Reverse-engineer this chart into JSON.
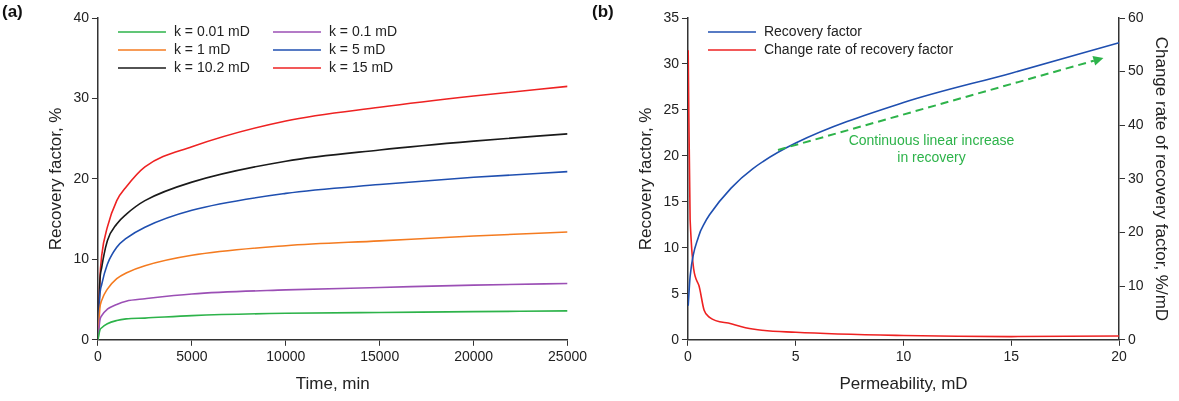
{
  "chart_data": [
    {
      "type": "line",
      "title": "(a)",
      "xlabel": "Time, min",
      "ylabel": "Recovery factor, %",
      "x": [
        0,
        100,
        200,
        500,
        1000,
        1500,
        2500,
        5000,
        10000,
        15000,
        20000,
        25000
      ],
      "series": [
        {
          "name": "k = 0.01 mD",
          "color": "#2db34a",
          "values": [
            0,
            1.2,
            1.5,
            2.0,
            2.4,
            2.6,
            2.7,
            3.0,
            3.3,
            3.4,
            3.5,
            3.6
          ]
        },
        {
          "name": "k = 0.1 mD",
          "color": "#9b4fb5",
          "values": [
            0,
            2.4,
            3.0,
            3.8,
            4.4,
            4.8,
            5.1,
            5.7,
            6.2,
            6.5,
            6.8,
            7.0
          ]
        },
        {
          "name": "k = 1 mD",
          "color": "#f47b20",
          "values": [
            0,
            3.9,
            4.9,
            6.3,
            7.6,
            8.3,
            9.2,
            10.5,
            11.7,
            12.3,
            12.9,
            13.4
          ]
        },
        {
          "name": "k = 5 mD",
          "color": "#1f4fb0",
          "values": [
            0,
            5.5,
            6.9,
            9.4,
            11.5,
            12.6,
            14.0,
            16.1,
            18.2,
            19.3,
            20.2,
            20.9
          ]
        },
        {
          "name": "k = 10.2 mD",
          "color": "#1a1a1a",
          "values": [
            0,
            7.2,
            9.0,
            12.3,
            14.4,
            15.6,
            17.3,
            19.6,
            22.2,
            23.6,
            24.7,
            25.6
          ]
        },
        {
          "name": "k = 15 mD",
          "color": "#ee2222",
          "values": [
            0,
            7.5,
            10.5,
            14.0,
            17.3,
            19.0,
            21.5,
            24.0,
            27.2,
            28.9,
            30.3,
            31.5
          ]
        }
      ],
      "xlim": [
        0,
        25000
      ],
      "xticks": [
        0,
        5000,
        10000,
        15000,
        20000,
        25000
      ],
      "ylim": [
        0,
        40
      ],
      "yticks": [
        0,
        10,
        20,
        30,
        40
      ],
      "grid": false,
      "legend": "top left",
      "marker": "none",
      "line_style": "solid"
    },
    {
      "type": "line",
      "title": "(b)",
      "xlabel": "Permeability, mD",
      "ylabel": "Recovery factor, %",
      "y2label": "Change rate of recovery factor, %/mD",
      "x": [
        0.01,
        0.1,
        0.5,
        0.75,
        1,
        2,
        3,
        5,
        10,
        15,
        20
      ],
      "series": [
        {
          "name": "Recovery factor",
          "color": "#1f4fb0",
          "values": [
            3.7,
            6.9,
            11.3,
            12.6,
            13.6,
            16.5,
            18.6,
            21.4,
            25.8,
            29.0,
            32.3
          ]
        },
        {
          "name": "Change rate of recovery factor",
          "color": "#ee2222",
          "axis": "y2",
          "values": [
            54.0,
            22.4,
            10.2,
            5.5,
            4.2,
            3.0,
            2.0,
            1.4,
            0.8,
            0.6,
            0.7
          ]
        }
      ],
      "xlim": [
        0,
        20
      ],
      "xticks": [
        0,
        5,
        10,
        15,
        20
      ],
      "ylim": [
        0,
        35
      ],
      "yticks": [
        0,
        5,
        10,
        15,
        20,
        25,
        30,
        35
      ],
      "y2lim": [
        0,
        60
      ],
      "y2ticks": [
        0,
        10,
        20,
        30,
        40,
        50,
        60
      ],
      "grid": false,
      "legend": "top left",
      "marker": "none",
      "line_style": "solid",
      "annotations": [
        "Continuous linear increase\nin recovery"
      ]
    }
  ]
}
